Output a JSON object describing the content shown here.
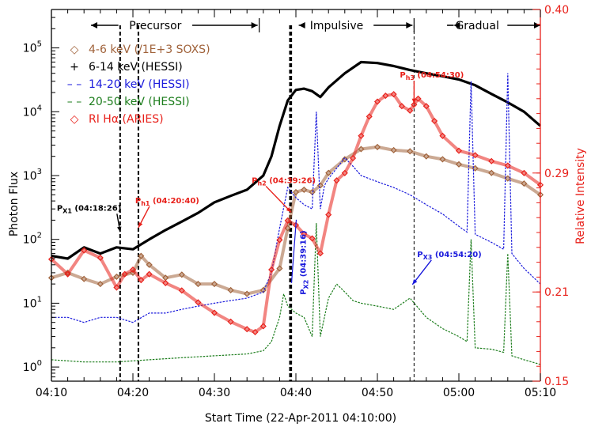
{
  "chart_data": {
    "type": "line",
    "xlabel": "Start Time (22-Apr-2011 04:10:00)",
    "ylabel": "Photon Flux",
    "ylabel_right": "Relative Intensity",
    "x_units": "minutes after 04:10:00 UT",
    "xlim": [
      0,
      60
    ],
    "ylim_log": [
      0.6,
      400000
    ],
    "ylim_right": [
      0.15,
      0.4
    ],
    "x_ticks": [
      {
        "value": 0,
        "label": "04:10"
      },
      {
        "value": 10,
        "label": "04:20"
      },
      {
        "value": 20,
        "label": "04:30"
      },
      {
        "value": 30,
        "label": "04:40"
      },
      {
        "value": 40,
        "label": "04:50"
      },
      {
        "value": 50,
        "label": "05:00"
      },
      {
        "value": 60,
        "label": "05:10"
      }
    ],
    "y_ticks_left": [
      {
        "value": 1,
        "base": "10",
        "exp": "0"
      },
      {
        "value": 10,
        "base": "10",
        "exp": "1"
      },
      {
        "value": 100,
        "base": "10",
        "exp": "2"
      },
      {
        "value": 1000,
        "base": "10",
        "exp": "3"
      },
      {
        "value": 10000,
        "base": "10",
        "exp": "4"
      },
      {
        "value": 100000,
        "base": "10",
        "exp": "5"
      }
    ],
    "y_ticks_right": [
      {
        "value": 0.15,
        "label": "0.15"
      },
      {
        "value": 0.21,
        "label": "0.21"
      },
      {
        "value": 0.29,
        "label": "0.29"
      },
      {
        "value": 0.4,
        "label": "0.40"
      }
    ],
    "phases": [
      {
        "label": "Precursor",
        "start": 0,
        "end": 25.5
      },
      {
        "label": "Impulsive",
        "start": 25.5,
        "end": 44.5
      },
      {
        "label": "Gradual",
        "start": 44.5,
        "end": 60
      }
    ],
    "legend": [
      {
        "marker": "◇",
        "label": "4-6 keV (/1E+3 SOXS)",
        "color": "#a0623a"
      },
      {
        "marker": "+",
        "label": "6-14 keV (HESSI)",
        "color": "#000000"
      },
      {
        "marker": "– –",
        "label": "14-20 keV (HESSI)",
        "color": "#1a1adc"
      },
      {
        "marker": "– –",
        "label": "20-50 keV (HESSI)",
        "color": "#1c7d1c"
      },
      {
        "marker": "◇",
        "label": "RI Hα (ARIES)",
        "color": "#e8201a"
      }
    ],
    "series": [
      {
        "name": "4-6 keV (/1E+3 SOXS)",
        "color": "#a0623a",
        "axis": "left",
        "style": "diamonds",
        "x": [
          0,
          2,
          4,
          6,
          8,
          10,
          11,
          12,
          14,
          16,
          18,
          20,
          22,
          24,
          26,
          28,
          29,
          30,
          31,
          32,
          33,
          34,
          36,
          38,
          40,
          42,
          44,
          46,
          48,
          50,
          52,
          54,
          56,
          58,
          60
        ],
        "y": [
          25,
          30,
          24,
          20,
          26,
          30,
          55,
          40,
          25,
          28,
          20,
          20,
          16,
          14,
          16,
          35,
          150,
          550,
          600,
          550,
          700,
          1100,
          1800,
          2600,
          2800,
          2500,
          2400,
          2000,
          1800,
          1500,
          1300,
          1100,
          900,
          750,
          500
        ]
      },
      {
        "name": "6-14 keV (HESSI)",
        "color": "#000000",
        "axis": "left",
        "style": "line",
        "x": [
          0,
          2,
          4,
          6,
          8,
          10,
          12,
          14,
          16,
          18,
          20,
          22,
          24,
          26,
          27,
          28,
          29,
          30,
          31,
          32,
          33,
          34,
          36,
          38,
          40,
          42,
          44,
          46,
          48,
          50,
          52,
          54,
          56,
          58,
          60
        ],
        "y": [
          55,
          50,
          75,
          60,
          75,
          70,
          100,
          140,
          190,
          260,
          380,
          480,
          600,
          1000,
          2000,
          6000,
          15000,
          22000,
          23000,
          21000,
          17000,
          24000,
          40000,
          60000,
          58000,
          52000,
          45000,
          40000,
          36000,
          32000,
          26000,
          19000,
          14000,
          10000,
          6000
        ]
      },
      {
        "name": "14-20 keV (HESSI)",
        "color": "#1a1adc",
        "axis": "left",
        "style": "dashed",
        "x": [
          0,
          2,
          4,
          6,
          8,
          10,
          12,
          14,
          16,
          18,
          20,
          22,
          24,
          26,
          27,
          28,
          29,
          30,
          31,
          32,
          32.5,
          33,
          33.5,
          34,
          35,
          36,
          37,
          38,
          40,
          42,
          44,
          46,
          48,
          50,
          51,
          51.5,
          52,
          54,
          55.5,
          56,
          56.5,
          58,
          60
        ],
        "y": [
          6,
          6,
          5,
          6,
          6,
          5,
          7,
          7,
          8,
          9,
          10,
          11,
          12,
          15,
          30,
          150,
          650,
          450,
          350,
          300,
          10000,
          300,
          700,
          900,
          1300,
          1900,
          1400,
          1000,
          800,
          650,
          500,
          350,
          250,
          160,
          130,
          30000,
          120,
          90,
          70,
          40000,
          60,
          35,
          20
        ]
      },
      {
        "name": "20-50 keV (HESSI)",
        "color": "#1c7d1c",
        "axis": "left",
        "style": "dashed",
        "x": [
          0,
          4,
          8,
          12,
          16,
          20,
          24,
          26,
          27,
          28,
          28.5,
          29,
          30,
          31,
          32,
          32.5,
          33,
          34,
          35,
          36,
          37,
          38,
          40,
          42,
          44,
          46,
          48,
          50,
          51,
          51.5,
          52,
          54,
          55.5,
          56,
          56.5,
          58,
          60
        ],
        "y": [
          1.3,
          1.2,
          1.2,
          1.3,
          1.4,
          1.5,
          1.6,
          1.8,
          2.5,
          6,
          14,
          9,
          7,
          6,
          3,
          180,
          3,
          12,
          20,
          15,
          11,
          10,
          9,
          8,
          12,
          6,
          4,
          3,
          2.5,
          100,
          2,
          1.9,
          1.7,
          60,
          1.5,
          1.3,
          1.1
        ]
      },
      {
        "name": "RI Hα (ARIES)",
        "color": "#e8201a",
        "axis": "right",
        "style": "diamonds",
        "x": [
          0,
          2,
          4,
          6,
          8,
          9,
          10,
          11,
          12,
          14,
          16,
          18,
          20,
          22,
          24,
          25,
          26,
          27,
          28,
          29,
          30,
          31,
          32,
          33,
          34,
          35,
          36,
          37,
          38,
          39,
          40,
          41,
          42,
          43,
          44,
          44.5,
          45,
          46,
          47,
          48,
          50,
          52,
          54,
          56,
          58,
          60
        ],
        "y": [
          0.232,
          0.222,
          0.238,
          0.233,
          0.213,
          0.222,
          0.225,
          0.218,
          0.222,
          0.216,
          0.211,
          0.203,
          0.196,
          0.19,
          0.185,
          0.183,
          0.187,
          0.225,
          0.245,
          0.258,
          0.255,
          0.249,
          0.246,
          0.236,
          0.262,
          0.285,
          0.29,
          0.3,
          0.315,
          0.328,
          0.338,
          0.342,
          0.343,
          0.335,
          0.332,
          0.336,
          0.34,
          0.335,
          0.325,
          0.315,
          0.305,
          0.302,
          0.298,
          0.295,
          0.29,
          0.282
        ]
      }
    ],
    "vlines": [
      {
        "x": 8.43,
        "color": "#000000",
        "dash": "dashed",
        "weight": "bold"
      },
      {
        "x": 10.67,
        "color": "#000000",
        "dash": "dashed",
        "weight": "bold"
      },
      {
        "x": 29.27,
        "color": "#000000",
        "dash": "dashed",
        "weight": "bold"
      },
      {
        "x": 29.43,
        "color": "#000000",
        "dash": "dashed",
        "weight": "bold"
      },
      {
        "x": 44.5,
        "color": "#000000",
        "dash": "dashed",
        "weight": "thin"
      }
    ],
    "annotations": [
      {
        "main": "P",
        "sub": "X1",
        "time": " (04:18:26)",
        "color": "#000000",
        "x": 8.43,
        "y": 120,
        "axis": "left"
      },
      {
        "main": "P",
        "sub": "h1",
        "time": " (04:20:40)",
        "color": "#e8201a",
        "x": 10.67,
        "y": 140,
        "axis": "left"
      },
      {
        "main": "P",
        "sub": "h2",
        "time": " (04:39:26)",
        "color": "#e8201a",
        "x": 29.43,
        "y": 0.262,
        "axis": "right"
      },
      {
        "main": "P",
        "sub": "X2",
        "time": " (04:39:16)",
        "color": "#1a1adc",
        "x": 29.27,
        "y": 18,
        "axis": "left"
      },
      {
        "main": "P",
        "sub": "h3",
        "time": " (04:54:30)",
        "color": "#e8201a",
        "x": 44.5,
        "y": 0.335,
        "axis": "right"
      },
      {
        "main": "P",
        "sub": "X3",
        "time": " (04:54:20)",
        "color": "#1a1adc",
        "x": 44.3,
        "y": 18,
        "axis": "left"
      }
    ]
  }
}
